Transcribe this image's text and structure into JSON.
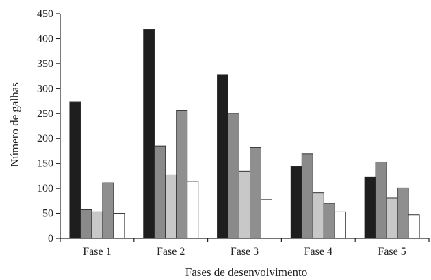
{
  "chart_data": {
    "type": "bar",
    "title": "",
    "xlabel": "Fases de desenvolvimento",
    "ylabel": "Número de galhas",
    "categories": [
      "Fase 1",
      "Fase 2",
      "Fase 3",
      "Fase 4",
      "Fase 5"
    ],
    "ylim": [
      0,
      450
    ],
    "yticks": [
      0,
      50,
      100,
      150,
      200,
      250,
      300,
      350,
      400,
      450
    ],
    "grid": false,
    "legend": "none",
    "series": [
      {
        "color": "#1e1e1e",
        "values": [
          273,
          418,
          328,
          144,
          123
        ]
      },
      {
        "color": "#8a8a8a",
        "values": [
          57,
          185,
          250,
          169,
          153
        ]
      },
      {
        "color": "#c8c8c8",
        "values": [
          53,
          127,
          134,
          91,
          81
        ]
      },
      {
        "color": "#8f8f8f",
        "values": [
          111,
          256,
          182,
          70,
          101
        ]
      },
      {
        "color": "#ffffff",
        "values": [
          50,
          114,
          78,
          53,
          47
        ]
      }
    ]
  }
}
